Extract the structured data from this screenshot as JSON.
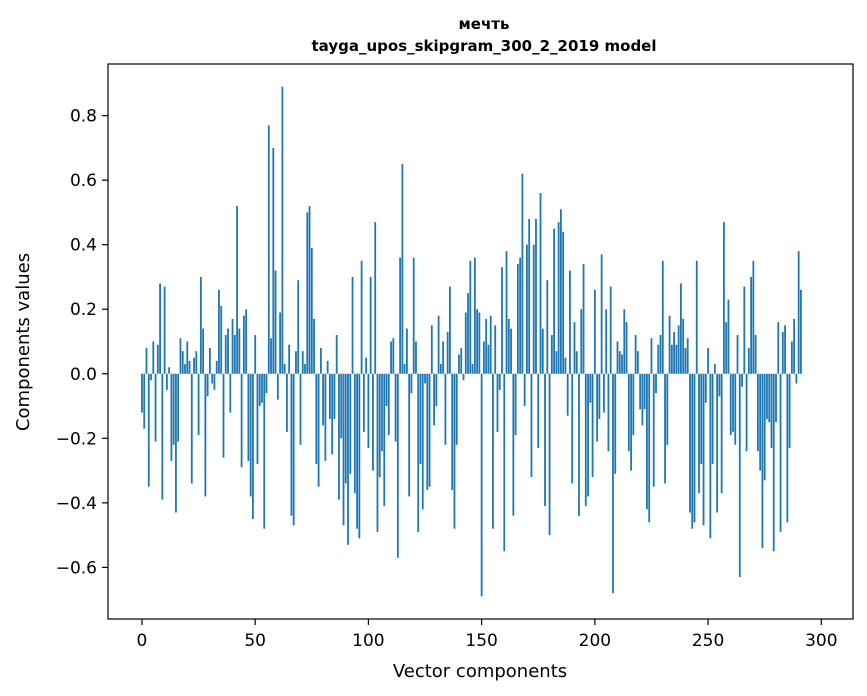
{
  "chart_data": {
    "type": "bar",
    "title_line1": "мечть",
    "title_line2": "tayga_upos_skipgram_300_2_2019 model",
    "xlabel": "Vector components",
    "ylabel": "Components values",
    "xlim": [
      -15,
      314
    ],
    "ylim": [
      -0.76,
      0.96
    ],
    "xticks": [
      0,
      50,
      100,
      150,
      200,
      250,
      300
    ],
    "yticks": [
      -0.6,
      -0.4,
      -0.2,
      0.0,
      0.2,
      0.4,
      0.6,
      0.8
    ],
    "ytick_labels": [
      "−0.6",
      "−0.4",
      "−0.2",
      "0.0",
      "0.2",
      "0.4",
      "0.6",
      "0.8"
    ],
    "xtick_labels": [
      "0",
      "50",
      "100",
      "150",
      "200",
      "250",
      "300"
    ],
    "bar_color": "#1f77b4",
    "grid": false,
    "values": [
      -0.12,
      -0.17,
      0.08,
      -0.35,
      -0.02,
      0.1,
      -0.21,
      0.09,
      0.28,
      -0.39,
      0.27,
      -0.05,
      0.02,
      -0.27,
      -0.22,
      -0.43,
      -0.21,
      0.11,
      0.07,
      0.03,
      0.1,
      0.04,
      -0.34,
      0.05,
      0.07,
      -0.19,
      0.3,
      0.14,
      -0.38,
      -0.07,
      0.08,
      -0.03,
      -0.05,
      0.04,
      0.26,
      0.21,
      -0.26,
      0.12,
      0.14,
      -0.12,
      0.17,
      0.12,
      0.52,
      0.14,
      -0.29,
      0.18,
      0.2,
      -0.27,
      -0.38,
      -0.45,
      0.12,
      -0.28,
      -0.1,
      -0.09,
      -0.48,
      -0.06,
      0.77,
      0.11,
      0.7,
      0.32,
      -0.08,
      0.19,
      0.89,
      0.03,
      -0.18,
      0.09,
      -0.44,
      -0.47,
      0.07,
      0.29,
      -0.22,
      0.07,
      0.03,
      0.5,
      0.52,
      0.39,
      0.17,
      -0.28,
      -0.35,
      0.08,
      -0.16,
      -0.27,
      0.04,
      -0.14,
      -0.25,
      -0.14,
      0.12,
      -0.39,
      -0.2,
      -0.47,
      -0.34,
      -0.53,
      -0.31,
      0.3,
      -0.37,
      -0.48,
      -0.51,
      0.35,
      -0.18,
      0.05,
      -0.23,
      0.3,
      -0.3,
      0.47,
      -0.49,
      -0.32,
      -0.24,
      -0.41,
      -0.1,
      -0.19,
      0.1,
      0.11,
      -0.21,
      -0.57,
      0.36,
      0.65,
      0.03,
      0.14,
      -0.38,
      -0.06,
      0.36,
      0.1,
      -0.49,
      -0.28,
      -0.42,
      -0.03,
      -0.36,
      -0.35,
      0.15,
      -0.16,
      -0.1,
      0.18,
      0.03,
      0.1,
      -0.22,
      0.13,
      0.27,
      -0.36,
      -0.48,
      -0.22,
      0.06,
      0.08,
      -0.02,
      0.19,
      0.25,
      0.35,
      0.03,
      0.36,
      0.2,
      0.19,
      -0.69,
      0.1,
      0.17,
      0.09,
      0.18,
      -0.48,
      0.15,
      -0.18,
      -0.05,
      0.33,
      -0.55,
      0.38,
      0.17,
      0.14,
      -0.44,
      -0.19,
      0.34,
      0.36,
      0.62,
      -0.1,
      0.4,
      0.48,
      -0.32,
      0.4,
      0.48,
      -0.23,
      0.56,
      0.14,
      -0.41,
      0.29,
      -0.5,
      0.12,
      0.45,
      0.07,
      0.47,
      0.51,
      0.44,
      0.05,
      -0.13,
      0.32,
      -0.34,
      0.16,
      0.07,
      -0.44,
      0.2,
      0.34,
      -0.41,
      -0.38,
      -0.09,
      -0.32,
      0.26,
      -0.21,
      -0.14,
      0.37,
      -0.12,
      0.2,
      -0.24,
      0.27,
      -0.68,
      -0.31,
      0.1,
      0.07,
      0.06,
      0.2,
      0.16,
      -0.24,
      -0.3,
      -0.19,
      0.12,
      0.07,
      -0.11,
      -0.16,
      -0.11,
      -0.42,
      -0.46,
      0.11,
      -0.35,
      -0.06,
      0.09,
      0.12,
      0.35,
      -0.34,
      -0.22,
      0.18,
      0.09,
      0.13,
      0.09,
      0.15,
      0.28,
      0.17,
      0.08,
      0.11,
      -0.43,
      -0.48,
      -0.46,
      0.35,
      -0.37,
      -0.28,
      -0.47,
      -0.09,
      0.08,
      -0.51,
      -0.28,
      0.03,
      -0.43,
      -0.07,
      -0.37,
      0.47,
      0.16,
      0.23,
      -0.19,
      -0.18,
      -0.22,
      0.12,
      -0.63,
      -0.04,
      0.27,
      -0.24,
      0.08,
      0.3,
      0.35,
      0.12,
      -0.24,
      -0.3,
      -0.54,
      -0.33,
      -0.14,
      -0.15,
      -0.23,
      -0.55,
      -0.15,
      0.16,
      -0.49,
      0.13,
      0.15,
      -0.46,
      -0.23,
      0.1,
      0.17,
      -0.03,
      0.38,
      0.26
    ]
  }
}
